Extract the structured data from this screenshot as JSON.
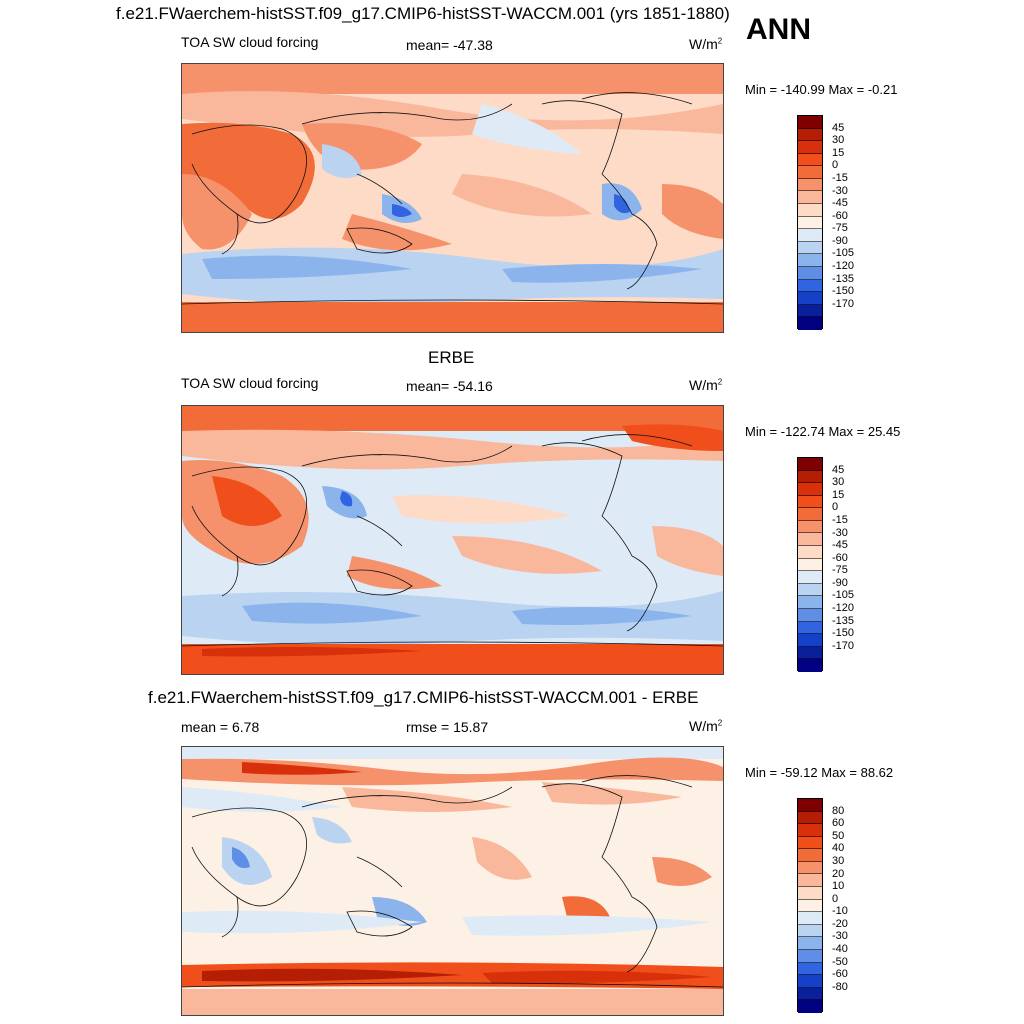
{
  "header": {
    "title": "f.e21.FWaerchem-histSST.f09_g17.CMIP6-histSST-WACCM.001 (yrs 1851-1880)",
    "season": "ANN"
  },
  "panels": [
    {
      "id": "model",
      "title": "",
      "variable": "TOA SW cloud forcing",
      "stat_center": "mean= -47.38",
      "units": "W/m",
      "units_sup": "2",
      "minmax": "Min = -140.99 Max =  -0.21",
      "levels": [
        "45",
        "30",
        "15",
        "0",
        "-15",
        "-30",
        "-45",
        "-60",
        "-75",
        "-90",
        "-105",
        "-120",
        "-135",
        "-150",
        "-170"
      ],
      "colors": [
        "#7f0000",
        "#b31e05",
        "#d7300a",
        "#f04e1a",
        "#f26c3a",
        "#f6926b",
        "#f9b89c",
        "#fddbc7",
        "#fdf1e6",
        "#deebf7",
        "#b9d3f1",
        "#8cb4ec",
        "#5e8ee5",
        "#3064e0",
        "#1540c8",
        "#0a209a",
        "#000080"
      ]
    },
    {
      "id": "obs",
      "title": "ERBE",
      "variable": "TOA SW cloud forcing",
      "stat_center": "mean= -54.16",
      "units": "W/m",
      "units_sup": "2",
      "minmax": "Min = -122.74 Max =  25.45",
      "levels": [
        "45",
        "30",
        "15",
        "0",
        "-15",
        "-30",
        "-45",
        "-60",
        "-75",
        "-90",
        "-105",
        "-120",
        "-135",
        "-150",
        "-170"
      ],
      "colors": [
        "#7f0000",
        "#b31e05",
        "#d7300a",
        "#f04e1a",
        "#f26c3a",
        "#f6926b",
        "#f9b89c",
        "#fddbc7",
        "#fdf1e6",
        "#deebf7",
        "#b9d3f1",
        "#8cb4ec",
        "#5e8ee5",
        "#3064e0",
        "#1540c8",
        "#0a209a",
        "#000080"
      ]
    },
    {
      "id": "diff",
      "title": "f.e21.FWaerchem-histSST.f09_g17.CMIP6-histSST-WACCM.001 - ERBE",
      "stat_left": "mean =   6.78",
      "stat_center": "rmse =  15.87",
      "units": "W/m",
      "units_sup": "2",
      "minmax": "Min = -59.12 Max =  88.62",
      "levels": [
        "80",
        "60",
        "50",
        "40",
        "30",
        "20",
        "10",
        "0",
        "-10",
        "-20",
        "-30",
        "-40",
        "-50",
        "-60",
        "-80"
      ],
      "colors": [
        "#7f0000",
        "#b31e05",
        "#d7300a",
        "#f04e1a",
        "#f26c3a",
        "#f6926b",
        "#f9b89c",
        "#fddbc7",
        "#fdf1e6",
        "#deebf7",
        "#b9d3f1",
        "#8cb4ec",
        "#5e8ee5",
        "#3064e0",
        "#1540c8",
        "#0a209a",
        "#000080"
      ]
    }
  ]
}
